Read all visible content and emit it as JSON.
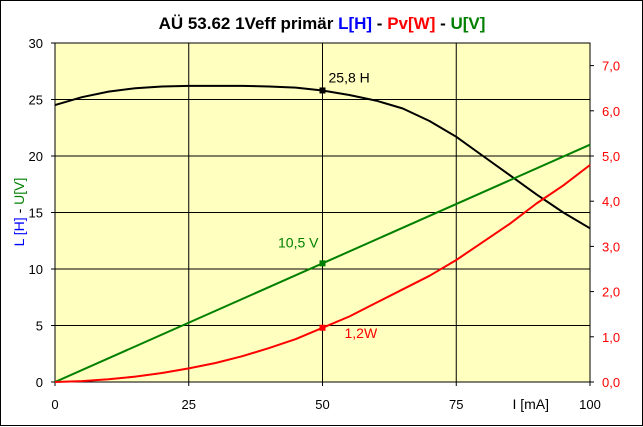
{
  "chart_data": {
    "type": "line",
    "title": "AÜ  53.62 1Veff primär",
    "title_legend": [
      {
        "text": "L[H]",
        "color": "#0000ff"
      },
      {
        "text": " - ",
        "color": "#000000"
      },
      {
        "text": "Pv[W]",
        "color": "#ff0000"
      },
      {
        "text": " - ",
        "color": "#000000"
      },
      {
        "text": "U[V]",
        "color": "#008000"
      }
    ],
    "xlabel": "I [mA]",
    "ylabel_parts": [
      {
        "text": "L [H]",
        "color": "#0000ff"
      },
      {
        "text": " - ",
        "color": "#000000"
      },
      {
        "text": "U[V]",
        "color": "#008000"
      }
    ],
    "xlim": [
      0,
      100
    ],
    "ylim_left": [
      0,
      30
    ],
    "ylim_right": [
      0,
      7.5
    ],
    "x_ticks": [
      "0",
      "25",
      "50",
      "75",
      "100"
    ],
    "y_ticks_left": [
      "0",
      "5",
      "10",
      "15",
      "20",
      "25",
      "30"
    ],
    "y_ticks_right": [
      "0,0",
      "1,0",
      "2,0",
      "3,0",
      "4,0",
      "5,0",
      "6,0",
      "7,0"
    ],
    "grid": true,
    "plot_background": "#ffffc0",
    "series": [
      {
        "name": "L[H]",
        "axis": "left",
        "color": "#000000",
        "x": [
          0,
          5,
          10,
          15,
          20,
          25,
          30,
          35,
          40,
          45,
          50,
          55,
          60,
          65,
          70,
          75,
          80,
          85,
          90,
          95,
          100
        ],
        "y": [
          24.5,
          25.2,
          25.7,
          26.0,
          26.15,
          26.2,
          26.2,
          26.2,
          26.15,
          26.05,
          25.8,
          25.4,
          24.9,
          24.2,
          23.1,
          21.7,
          20.0,
          18.3,
          16.6,
          15.0,
          13.6
        ]
      },
      {
        "name": "U[V]",
        "axis": "left",
        "color": "#008000",
        "x": [
          0,
          100
        ],
        "y": [
          0,
          21.0
        ]
      },
      {
        "name": "Pv[W]",
        "axis": "right",
        "color": "#ff0000",
        "x": [
          0,
          5,
          10,
          15,
          20,
          25,
          30,
          35,
          40,
          45,
          50,
          55,
          60,
          65,
          70,
          75,
          80,
          85,
          90,
          95,
          100
        ],
        "y": [
          0,
          0.02,
          0.06,
          0.12,
          0.2,
          0.3,
          0.42,
          0.57,
          0.75,
          0.95,
          1.2,
          1.45,
          1.75,
          2.05,
          2.35,
          2.7,
          3.1,
          3.5,
          3.95,
          4.35,
          4.8
        ]
      }
    ],
    "annotations": [
      {
        "text": "25,8 H",
        "x": 50,
        "y": 25.8,
        "axis": "left",
        "color": "#000000"
      },
      {
        "text": "10,5 V",
        "x": 50,
        "y": 10.5,
        "axis": "left",
        "color": "#008000"
      },
      {
        "text": "1,2W",
        "x": 50,
        "y": 1.2,
        "axis": "right",
        "color": "#ff0000"
      }
    ]
  }
}
